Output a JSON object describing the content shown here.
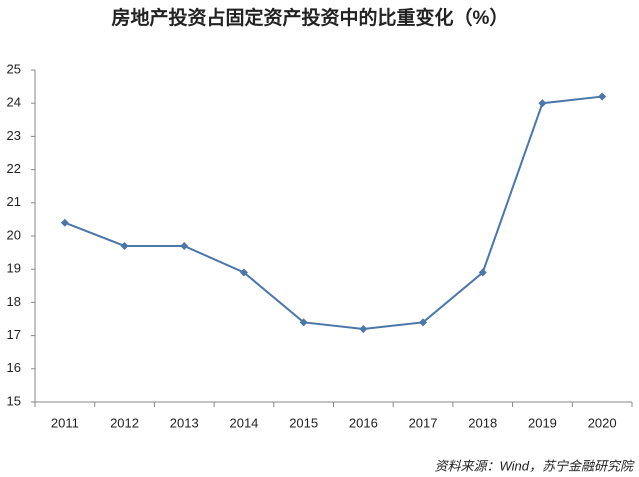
{
  "chart_data": {
    "type": "line",
    "title": "房地产投资占固定资产投资中的比重变化（%）",
    "categories": [
      "2011",
      "2012",
      "2013",
      "2014",
      "2015",
      "2016",
      "2017",
      "2018",
      "2019",
      "2020"
    ],
    "values": [
      20.4,
      19.7,
      19.7,
      18.9,
      17.4,
      17.2,
      17.4,
      18.9,
      24.0,
      24.2
    ],
    "color": "#4a76a8",
    "ylim": [
      15,
      25
    ],
    "yticks": [
      15,
      16,
      17,
      18,
      19,
      20,
      21,
      22,
      23,
      24,
      25
    ],
    "grid": false,
    "source": "资料来源：Wind，苏宁金融研究院"
  }
}
